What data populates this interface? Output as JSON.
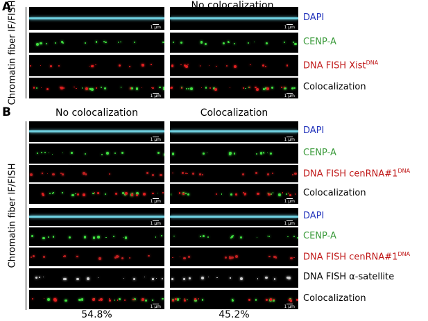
{
  "panel_a": {
    "letter": "A",
    "title": "No colocalization",
    "side_label": "Chromatin fiber IF/FISH",
    "scale_label": "1 µm",
    "rows": [
      {
        "label": "DAPI",
        "color": "#2233bb",
        "signal": [
          "#6fd0e0"
        ],
        "fiber": true,
        "scale_bar": true
      },
      {
        "label": "CENP-A",
        "color": "#3a9a3a",
        "signal": [
          "#40e040"
        ]
      },
      {
        "label": "DNA FISH Xist",
        "sup": "DNA",
        "color": "#c01818",
        "signal": [
          "#e02020"
        ]
      },
      {
        "label": "Colocalization",
        "color": "#000000",
        "signal": [
          "#40e040",
          "#e02020"
        ],
        "scale_bar": true
      }
    ]
  },
  "panel_b": {
    "letter": "B",
    "columns": [
      "No colocalization",
      "Colocalization"
    ],
    "side_label": "Chromatin fiber IF/FISH",
    "scale_label": "1 µm",
    "groups": [
      {
        "rows": [
          {
            "label": "DAPI",
            "color": "#2233bb",
            "signal": [
              "#6fd0e0"
            ],
            "fiber": true,
            "scale_bar": true
          },
          {
            "label": "CENP-A",
            "color": "#3a9a3a",
            "signal": [
              "#40e040"
            ]
          },
          {
            "label": "DNA FISH cenRNA#1",
            "sup": "DNA",
            "color": "#c01818",
            "signal": [
              "#c02020"
            ]
          },
          {
            "label": "Colocalization",
            "color": "#000000",
            "signal": [
              "#40e040",
              "#e02020"
            ],
            "scale_bar": true
          }
        ]
      },
      {
        "rows": [
          {
            "label": "DAPI",
            "color": "#2233bb",
            "signal": [
              "#6fd0e0"
            ],
            "fiber": true,
            "scale_bar": true
          },
          {
            "label": "CENP-A",
            "color": "#3a9a3a",
            "signal": [
              "#40e040"
            ]
          },
          {
            "label": "DNA FISH cenRNA#1",
            "sup": "DNA",
            "color": "#c01818",
            "signal": [
              "#c02020"
            ]
          },
          {
            "label": "DNA FISH α-satellite",
            "color": "#000000",
            "signal": [
              "#d0d0d0"
            ]
          },
          {
            "label": "Colocalization",
            "color": "#000000",
            "signal": [
              "#40e040",
              "#e02020"
            ],
            "scale_bar": true
          }
        ]
      }
    ],
    "percentages": [
      "54.8%",
      "45.2%"
    ]
  }
}
